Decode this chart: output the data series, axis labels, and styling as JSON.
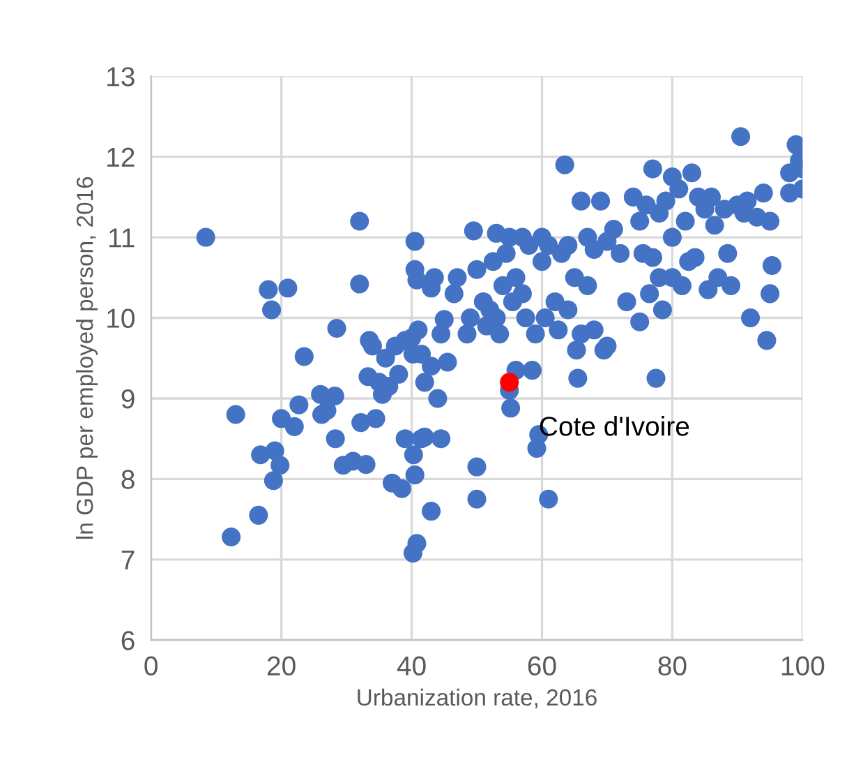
{
  "chart_data": {
    "type": "scatter",
    "xlabel": "Urbanization rate, 2016",
    "ylabel": "ln GDP per employed person, 2016",
    "xlim": [
      0,
      100
    ],
    "ylim": [
      6,
      13
    ],
    "xticks": [
      0,
      20,
      40,
      60,
      80,
      100
    ],
    "yticks": [
      6,
      7,
      8,
      9,
      10,
      11,
      12,
      13
    ],
    "grid": true,
    "marker": "circle",
    "series": [
      {
        "color": "#4472c4",
        "x": [
          8.4,
          18,
          18.5,
          21,
          13,
          12.3,
          16.5,
          16.8,
          19,
          18.8,
          20,
          19.8,
          22,
          22.7,
          23.5,
          26,
          26.2,
          27,
          28.2,
          28.3,
          28.5,
          29.5,
          31,
          32,
          32,
          32.2,
          33,
          33.5,
          33.3,
          34,
          34.5,
          35,
          35.5,
          36,
          36.5,
          37,
          37.5,
          38,
          39,
          38.5,
          39,
          40,
          40.2,
          40.5,
          40.5,
          40.8,
          40.3,
          40.5,
          40.8,
          40.2,
          41,
          41.5,
          42,
          41.5,
          42,
          43,
          43,
          43.5,
          43,
          44,
          44.5,
          44.5,
          45,
          45.5,
          46.5,
          47,
          48.5,
          49,
          49.5,
          50,
          50,
          50,
          51,
          51.5,
          52,
          52.5,
          53,
          53,
          53.5,
          54,
          54.5,
          55,
          55,
          55.2,
          55.5,
          56,
          56,
          57,
          57,
          57.5,
          58,
          58.5,
          59,
          59.5,
          59.2,
          60,
          60,
          60.5,
          61,
          61,
          62,
          62.5,
          63,
          63.5,
          64,
          64,
          65,
          65.3,
          65.5,
          66,
          66,
          67,
          67,
          68,
          68,
          69,
          69.5,
          70,
          70,
          71,
          72,
          73,
          74,
          75,
          75,
          75.5,
          76,
          76.5,
          77,
          77,
          77.5,
          78,
          78,
          78.5,
          79,
          80,
          80,
          80,
          81,
          81.5,
          82,
          82.5,
          83,
          83.5,
          84,
          85,
          85.5,
          86,
          86.5,
          87,
          88,
          88.5,
          89,
          90,
          90.5,
          91,
          91.5,
          92,
          93,
          94,
          94.5,
          95,
          95,
          95.3,
          98,
          98,
          99,
          99.5,
          100,
          100
        ],
        "values": [
          11.0,
          10.35,
          10.1,
          10.37,
          8.8,
          7.28,
          7.55,
          8.3,
          8.35,
          7.98,
          8.75,
          8.17,
          8.65,
          8.92,
          9.52,
          9.05,
          8.8,
          8.85,
          9.03,
          8.5,
          9.87,
          8.17,
          8.22,
          11.2,
          10.42,
          8.7,
          8.18,
          9.72,
          9.27,
          9.65,
          8.75,
          9.2,
          9.05,
          9.5,
          9.15,
          7.95,
          9.65,
          9.3,
          9.72,
          7.88,
          8.5,
          9.75,
          9.55,
          10.6,
          10.95,
          10.47,
          8.3,
          8.05,
          7.2,
          7.08,
          9.85,
          9.55,
          9.2,
          8.5,
          8.52,
          9.4,
          10.37,
          10.5,
          7.6,
          9.0,
          8.5,
          9.8,
          9.98,
          9.45,
          10.3,
          10.5,
          9.8,
          10.0,
          11.08,
          10.6,
          7.75,
          8.15,
          10.2,
          9.9,
          10.1,
          10.7,
          11.05,
          10.0,
          9.8,
          10.4,
          10.8,
          11.0,
          9.1,
          8.88,
          10.2,
          10.5,
          9.35,
          11.0,
          10.3,
          10.0,
          10.9,
          9.35,
          9.8,
          8.55,
          8.38,
          11.0,
          10.7,
          10.0,
          7.75,
          10.9,
          10.2,
          9.85,
          10.8,
          11.9,
          10.9,
          10.1,
          10.5,
          9.6,
          9.25,
          11.45,
          9.8,
          11.0,
          10.4,
          10.85,
          9.85,
          11.45,
          9.6,
          10.95,
          9.65,
          11.1,
          10.8,
          10.2,
          11.5,
          11.2,
          9.95,
          10.8,
          11.4,
          10.3,
          11.85,
          10.75,
          9.25,
          11.3,
          10.5,
          10.1,
          11.45,
          11.75,
          11.0,
          10.5,
          11.6,
          10.4,
          11.2,
          10.7,
          11.8,
          10.75,
          11.5,
          11.35,
          10.35,
          11.5,
          11.15,
          10.5,
          11.35,
          10.8,
          10.4,
          11.4,
          12.25,
          11.3,
          11.45,
          10.0,
          11.25,
          11.55,
          9.72,
          11.2,
          10.3,
          10.65,
          11.55,
          11.8,
          12.15,
          11.95,
          11.6,
          11.85
        ]
      },
      {
        "color": "#ff0000",
        "x": [
          55
        ],
        "values": [
          9.2
        ]
      }
    ],
    "annotations": [
      "Cote d'Ivoire"
    ]
  }
}
